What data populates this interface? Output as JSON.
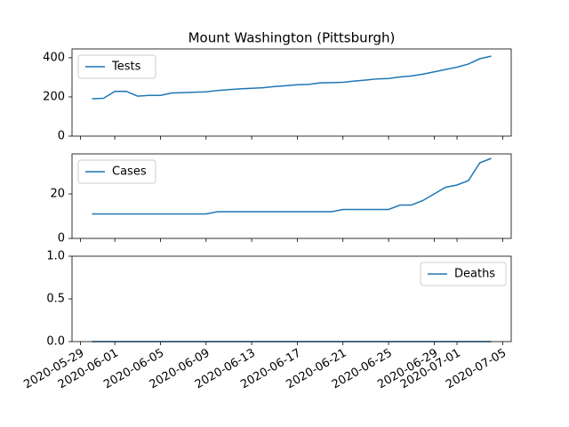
{
  "chart_data": [
    {
      "type": "line",
      "title": "Mount Washington (Pittsburgh)",
      "x": [
        "2020-05-30",
        "2020-05-31",
        "2020-06-01",
        "2020-06-02",
        "2020-06-03",
        "2020-06-04",
        "2020-06-05",
        "2020-06-06",
        "2020-06-07",
        "2020-06-08",
        "2020-06-09",
        "2020-06-10",
        "2020-06-11",
        "2020-06-12",
        "2020-06-13",
        "2020-06-14",
        "2020-06-15",
        "2020-06-16",
        "2020-06-17",
        "2020-06-18",
        "2020-06-19",
        "2020-06-20",
        "2020-06-21",
        "2020-06-22",
        "2020-06-23",
        "2020-06-24",
        "2020-06-25",
        "2020-06-26",
        "2020-06-27",
        "2020-06-28",
        "2020-06-29",
        "2020-06-30",
        "2020-07-01",
        "2020-07-02",
        "2020-07-03",
        "2020-07-04"
      ],
      "series": [
        {
          "name": "Tests",
          "color": "#1f77b4",
          "values": [
            191,
            193,
            228,
            229,
            204,
            208,
            208,
            220,
            222,
            224,
            226,
            233,
            237,
            241,
            244,
            247,
            253,
            257,
            262,
            264,
            272,
            273,
            275,
            281,
            286,
            292,
            294,
            302,
            307,
            316,
            328,
            340,
            352,
            368,
            395,
            408
          ]
        }
      ],
      "xlim": [
        "2020-05-28T06:00",
        "2020-07-05T18:00"
      ],
      "ylim": [
        0,
        445
      ],
      "yticks": [
        0,
        200,
        400
      ],
      "legend": "upper left"
    },
    {
      "type": "line",
      "x": [
        "2020-05-30",
        "2020-05-31",
        "2020-06-01",
        "2020-06-02",
        "2020-06-03",
        "2020-06-04",
        "2020-06-05",
        "2020-06-06",
        "2020-06-07",
        "2020-06-08",
        "2020-06-09",
        "2020-06-10",
        "2020-06-11",
        "2020-06-12",
        "2020-06-13",
        "2020-06-14",
        "2020-06-15",
        "2020-06-16",
        "2020-06-17",
        "2020-06-18",
        "2020-06-19",
        "2020-06-20",
        "2020-06-21",
        "2020-06-22",
        "2020-06-23",
        "2020-06-24",
        "2020-06-25",
        "2020-06-26",
        "2020-06-27",
        "2020-06-28",
        "2020-06-29",
        "2020-06-30",
        "2020-07-01",
        "2020-07-02",
        "2020-07-03",
        "2020-07-04"
      ],
      "series": [
        {
          "name": "Cases",
          "color": "#1f77b4",
          "values": [
            11,
            11,
            11,
            11,
            11,
            11,
            11,
            11,
            11,
            11,
            11,
            12,
            12,
            12,
            12,
            12,
            12,
            12,
            12,
            12,
            12,
            12,
            13,
            13,
            13,
            13,
            13,
            15,
            15,
            17,
            20,
            23,
            24,
            26,
            34,
            36
          ]
        }
      ],
      "xlim": [
        "2020-05-28T06:00",
        "2020-07-05T18:00"
      ],
      "ylim": [
        0,
        38
      ],
      "yticks": [
        0,
        20
      ],
      "legend": "upper left"
    },
    {
      "type": "line",
      "x": [
        "2020-05-30",
        "2020-05-31",
        "2020-06-01",
        "2020-06-02",
        "2020-06-03",
        "2020-06-04",
        "2020-06-05",
        "2020-06-06",
        "2020-06-07",
        "2020-06-08",
        "2020-06-09",
        "2020-06-10",
        "2020-06-11",
        "2020-06-12",
        "2020-06-13",
        "2020-06-14",
        "2020-06-15",
        "2020-06-16",
        "2020-06-17",
        "2020-06-18",
        "2020-06-19",
        "2020-06-20",
        "2020-06-21",
        "2020-06-22",
        "2020-06-23",
        "2020-06-24",
        "2020-06-25",
        "2020-06-26",
        "2020-06-27",
        "2020-06-28",
        "2020-06-29",
        "2020-06-30",
        "2020-07-01",
        "2020-07-02",
        "2020-07-03",
        "2020-07-04"
      ],
      "series": [
        {
          "name": "Deaths",
          "color": "#1f77b4",
          "values": [
            0,
            0,
            0,
            0,
            0,
            0,
            0,
            0,
            0,
            0,
            0,
            0,
            0,
            0,
            0,
            0,
            0,
            0,
            0,
            0,
            0,
            0,
            0,
            0,
            0,
            0,
            0,
            0,
            0,
            0,
            0,
            0,
            0,
            0,
            0,
            0
          ]
        }
      ],
      "xlim": [
        "2020-05-28T06:00",
        "2020-07-05T18:00"
      ],
      "ylim": [
        0,
        1
      ],
      "yticks": [
        {
          "value": 0,
          "label": "0.0"
        },
        {
          "value": 0.5,
          "label": "0.5"
        },
        {
          "value": 1,
          "label": "1.0"
        }
      ],
      "xticks": [
        "2020-05-29",
        "2020-06-01",
        "2020-06-05",
        "2020-06-09",
        "2020-06-13",
        "2020-06-17",
        "2020-06-21",
        "2020-06-25",
        "2020-06-29",
        "2020-07-01",
        "2020-07-05"
      ],
      "legend": "upper right"
    }
  ]
}
